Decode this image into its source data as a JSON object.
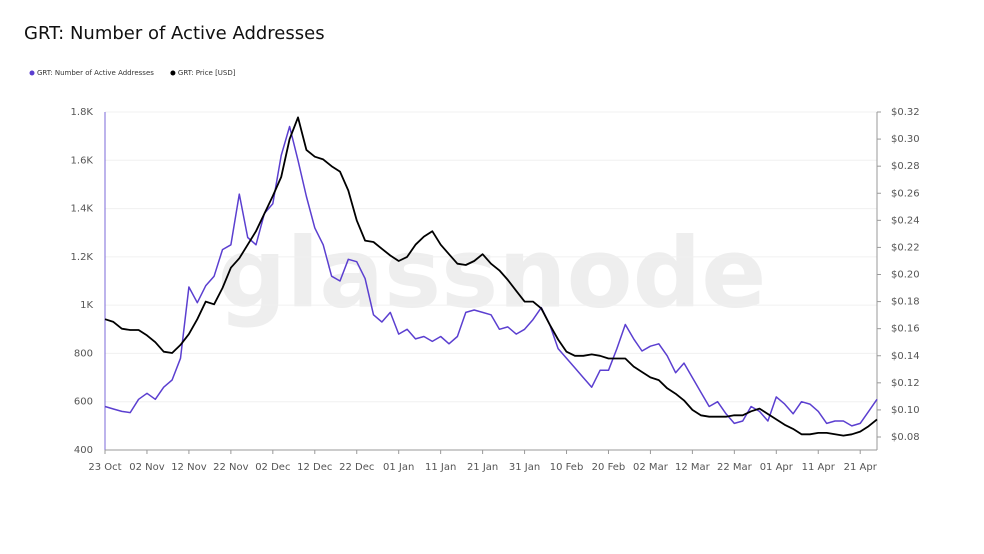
{
  "chart_data": {
    "type": "line",
    "title": "GRT: Number of Active Addresses",
    "watermark": "glassnode",
    "legend": "top-left",
    "grid": true,
    "categories": [
      "23 Oct",
      null,
      null,
      null,
      null,
      "02 Nov",
      null,
      null,
      null,
      null,
      "12 Nov",
      null,
      null,
      null,
      null,
      "22 Nov",
      null,
      null,
      null,
      null,
      "02 Dec",
      null,
      null,
      null,
      null,
      "12 Dec",
      null,
      null,
      null,
      null,
      "22 Dec",
      null,
      null,
      null,
      null,
      "01 Jan",
      null,
      null,
      null,
      null,
      "11 Jan",
      null,
      null,
      null,
      null,
      "21 Jan",
      null,
      null,
      null,
      null,
      "31 Jan",
      null,
      null,
      null,
      null,
      "10 Feb",
      null,
      null,
      null,
      null,
      "20 Feb",
      null,
      null,
      null,
      null,
      "02 Mar",
      null,
      null,
      null,
      null,
      "12 Mar",
      null,
      null,
      null,
      null,
      "22 Mar",
      null,
      null,
      null,
      null,
      "01 Apr",
      null,
      null,
      null,
      null,
      "11 Apr",
      null,
      null,
      null,
      null,
      "21 Apr",
      null,
      null
    ],
    "ylim": [
      400,
      1800
    ],
    "yticks": [
      400,
      600,
      800,
      {
        "value": 1000,
        "label": "1K"
      },
      {
        "value": 1200,
        "label": "1.2K"
      },
      {
        "value": 1400,
        "label": "1.4K"
      },
      {
        "value": 1600,
        "label": "1.6K"
      },
      {
        "value": 1800,
        "label": "1.8K"
      }
    ],
    "y2lim": [
      0.0704,
      0.32
    ],
    "y2ticks": [
      {
        "value": 0.08,
        "label": "$0.08"
      },
      {
        "value": 0.1,
        "label": "$0.10"
      },
      {
        "value": 0.12,
        "label": "$0.12"
      },
      {
        "value": 0.14,
        "label": "$0.14"
      },
      {
        "value": 0.16,
        "label": "$0.16"
      },
      {
        "value": 0.18,
        "label": "$0.18"
      },
      {
        "value": 0.2,
        "label": "$0.20"
      },
      {
        "value": 0.22,
        "label": "$0.22"
      },
      {
        "value": 0.24,
        "label": "$0.24"
      },
      {
        "value": 0.26,
        "label": "$0.26"
      },
      {
        "value": 0.28,
        "label": "$0.28"
      },
      {
        "value": 0.3,
        "label": "$0.30"
      },
      {
        "value": 0.32,
        "label": "$0.32"
      }
    ],
    "series": [
      {
        "name": "GRT: Number of Active Addresses",
        "color": "#5b3fd0",
        "axis": "y",
        "values": [
          580,
          570,
          560,
          555,
          610,
          635,
          610,
          660,
          690,
          780,
          1075,
          1010,
          1080,
          1120,
          1230,
          1250,
          1460,
          1280,
          1250,
          1380,
          1420,
          1620,
          1740,
          1600,
          1450,
          1320,
          1250,
          1120,
          1100,
          1190,
          1180,
          1110,
          960,
          930,
          970,
          880,
          900,
          860,
          870,
          850,
          870,
          840,
          870,
          970,
          980,
          970,
          960,
          900,
          910,
          880,
          900,
          940,
          990,
          920,
          820,
          780,
          740,
          700,
          660,
          730,
          730,
          820,
          920,
          860,
          810,
          830,
          840,
          790,
          720,
          760,
          700,
          640,
          580,
          600,
          550,
          510,
          520,
          580,
          560,
          520,
          620,
          590,
          550,
          600,
          590,
          560,
          510,
          520,
          520,
          500,
          510,
          560,
          610
        ]
      },
      {
        "name": "GRT: Price [USD]",
        "color": "#000000",
        "axis": "y2",
        "values": [
          0.167,
          0.165,
          0.16,
          0.159,
          0.159,
          0.155,
          0.15,
          0.143,
          0.142,
          0.148,
          0.156,
          0.167,
          0.18,
          0.178,
          0.19,
          0.205,
          0.212,
          0.222,
          0.232,
          0.245,
          0.258,
          0.272,
          0.3,
          0.316,
          0.292,
          0.287,
          0.285,
          0.28,
          0.276,
          0.262,
          0.24,
          0.225,
          0.224,
          0.219,
          0.214,
          0.21,
          0.213,
          0.222,
          0.228,
          0.232,
          0.222,
          0.215,
          0.208,
          0.207,
          0.21,
          0.215,
          0.208,
          0.203,
          0.196,
          0.188,
          0.18,
          0.18,
          0.175,
          0.163,
          0.152,
          0.143,
          0.14,
          0.14,
          0.141,
          0.14,
          0.138,
          0.138,
          0.138,
          0.132,
          0.128,
          0.124,
          0.122,
          0.116,
          0.112,
          0.107,
          0.1,
          0.096,
          0.095,
          0.095,
          0.095,
          0.096,
          0.096,
          0.099,
          0.101,
          0.097,
          0.093,
          0.089,
          0.086,
          0.082,
          0.082,
          0.083,
          0.083,
          0.082,
          0.081,
          0.082,
          0.084,
          0.088,
          0.093
        ]
      }
    ]
  }
}
